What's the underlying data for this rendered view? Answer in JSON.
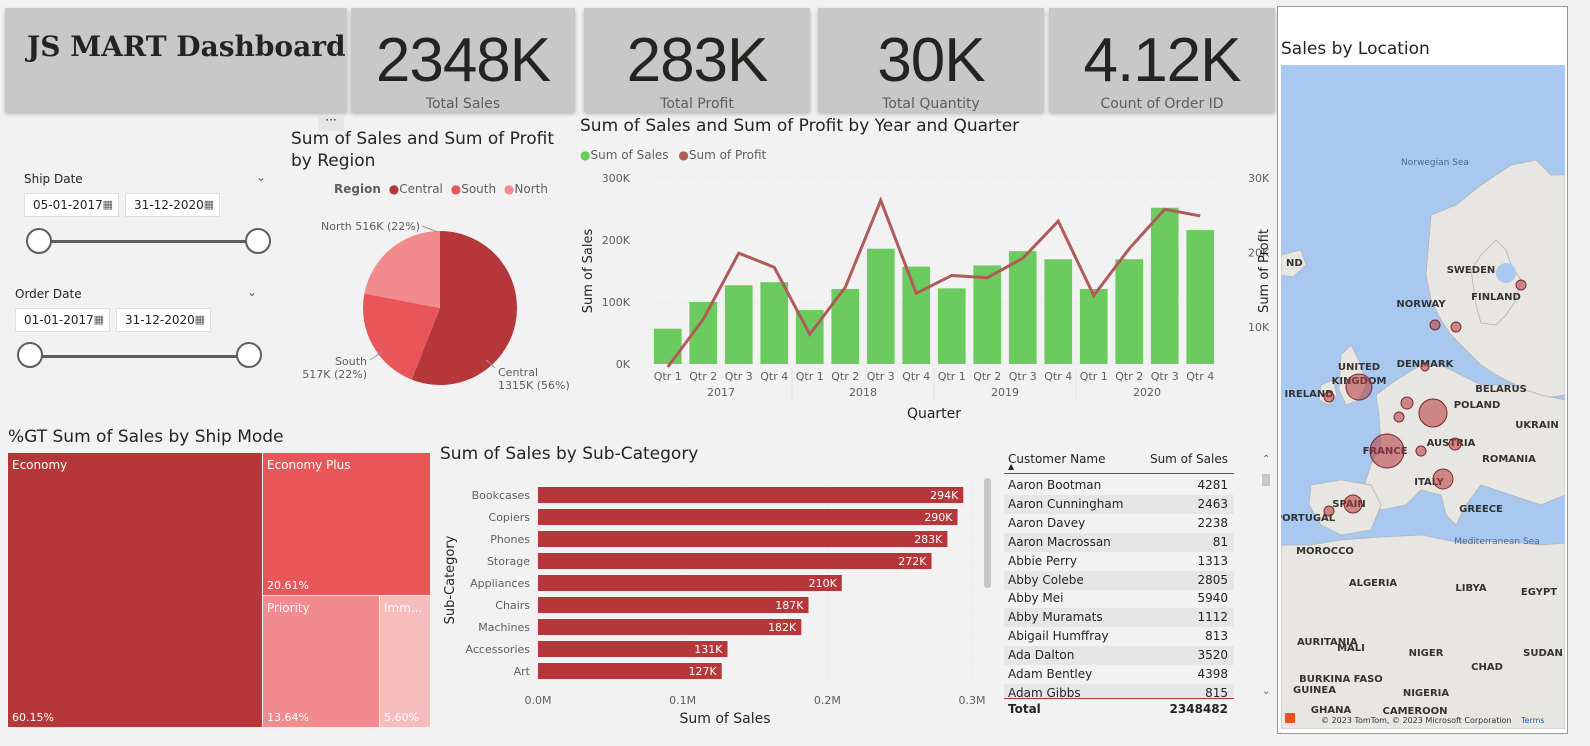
{
  "header": {
    "title": "JS MART Dashboard"
  },
  "kpis": [
    {
      "value": "2348K",
      "label": "Total Sales"
    },
    {
      "value": "283K",
      "label": "Total Profit"
    },
    {
      "value": "30K",
      "label": "Total  Quantity"
    },
    {
      "value": "4.12K",
      "label": "Count of Order ID"
    }
  ],
  "filters": {
    "ship_date": {
      "label": "Ship Date",
      "start": "05-01-2017",
      "end": "31-12-2020"
    },
    "order_date": {
      "label": "Order Date",
      "start": "01-01-2017",
      "end": "31-12-2020"
    }
  },
  "region_pie": {
    "title": "Sum of Sales and Sum of Profit by Region",
    "legend_title": "Region",
    "slices": [
      {
        "name": "Central",
        "value": 1315,
        "label": "Central 1315K (56%)",
        "color": "#b5373a"
      },
      {
        "name": "South",
        "value": 517,
        "label": "South 517K (22%)",
        "color": "#e9565a"
      },
      {
        "name": "North",
        "value": 516,
        "label": "North 516K (22%)",
        "color": "#f28b8d"
      }
    ]
  },
  "chart_data": {
    "type": "bar",
    "title": "Sum of Sales and Sum of Profit by Year and Quarter",
    "xlabel": "Quarter",
    "ylabel": "Sum of Sales",
    "y2label": "Sum of Profit",
    "categories": [
      "Qtr 1",
      "Qtr 2",
      "Qtr 3",
      "Qtr 4",
      "Qtr 1",
      "Qtr 2",
      "Qtr 3",
      "Qtr 4",
      "Qtr 1",
      "Qtr 2",
      "Qtr 3",
      "Qtr 4",
      "Qtr 1",
      "Qtr 2",
      "Qtr 3",
      "Qtr 4"
    ],
    "years": [
      "2017",
      "2018",
      "2019",
      "2020"
    ],
    "ylim": [
      0,
      300000
    ],
    "y2lim": [
      5000,
      30000
    ],
    "y_ticks": [
      "0K",
      "100K",
      "200K",
      "300K"
    ],
    "y2_ticks": [
      "10K",
      "20K",
      "30K"
    ],
    "series": [
      {
        "name": "Sum of Sales",
        "type": "bar",
        "color": "#6ccb5f",
        "values": [
          57000,
          100000,
          127000,
          132000,
          87000,
          121000,
          186000,
          157000,
          122000,
          159000,
          182000,
          169000,
          121000,
          169000,
          252000,
          216000
        ]
      },
      {
        "name": "Sum of Profit",
        "type": "line",
        "color": "#b05a5a",
        "values": [
          4600,
          11000,
          19900,
          18000,
          9000,
          15300,
          27000,
          14500,
          16900,
          16600,
          19200,
          24200,
          14200,
          20500,
          25800,
          24900
        ]
      }
    ]
  },
  "ship_mode": {
    "title": "%GT Sum of Sales by Ship Mode",
    "cells": [
      {
        "name": "Economy",
        "pct": "60.15%"
      },
      {
        "name": "Economy Plus",
        "pct": "20.61%"
      },
      {
        "name": "Priority",
        "pct": "13.64%"
      },
      {
        "name": "Imm...",
        "pct": "5.60%"
      }
    ]
  },
  "subcategory": {
    "title": "Sum of Sales by Sub-Category",
    "xlabel": "Sum of Sales",
    "ylabel": "Sub-Category",
    "x_ticks": [
      "0.0M",
      "0.1M",
      "0.2M",
      "0.3M"
    ],
    "xlim": [
      0,
      300
    ],
    "bars": [
      {
        "name": "Bookcases",
        "value": 294,
        "label": "294K"
      },
      {
        "name": "Copiers",
        "value": 290,
        "label": "290K"
      },
      {
        "name": "Phones",
        "value": 283,
        "label": "283K"
      },
      {
        "name": "Storage",
        "value": 272,
        "label": "272K"
      },
      {
        "name": "Appliances",
        "value": 210,
        "label": "210K"
      },
      {
        "name": "Chairs",
        "value": 187,
        "label": "187K"
      },
      {
        "name": "Machines",
        "value": 182,
        "label": "182K"
      },
      {
        "name": "Accessories",
        "value": 131,
        "label": "131K"
      },
      {
        "name": "Art",
        "value": 127,
        "label": "127K"
      }
    ]
  },
  "table": {
    "col_name": "Customer Name",
    "col_sales": "Sum of Sales",
    "rows": [
      {
        "name": "Aaron Bootman",
        "sales": "4281"
      },
      {
        "name": "Aaron Cunningham",
        "sales": "2463"
      },
      {
        "name": "Aaron Davey",
        "sales": "2238"
      },
      {
        "name": "Aaron Macrossan",
        "sales": "81"
      },
      {
        "name": "Abbie Perry",
        "sales": "1313"
      },
      {
        "name": "Abby Colebe",
        "sales": "2805"
      },
      {
        "name": "Abby Mei",
        "sales": "5940"
      },
      {
        "name": "Abby Muramats",
        "sales": "1112"
      },
      {
        "name": "Abigail Humffray",
        "sales": "813"
      },
      {
        "name": "Ada Dalton",
        "sales": "3520"
      },
      {
        "name": "Adam Bentley",
        "sales": "4398"
      },
      {
        "name": "Adam Gibbs",
        "sales": "815"
      }
    ],
    "total_label": "Total",
    "total_value": "2348482"
  },
  "map": {
    "title": "Sales by Location",
    "labels": [
      "Norwegian Sea",
      "SWEDEN",
      "NORWAY",
      "FINLAND",
      "DENMARK",
      "UNITED KINGDOM",
      "IRELAND",
      "BELARUS",
      "POLAND",
      "UKRAIN",
      "FRANCE",
      "AUSTRIA",
      "ROMANIA",
      "ITALY",
      "PORTUGAL",
      "SPAIN",
      "GREECE",
      "MOROCCO",
      "ALGERIA",
      "LIBYA",
      "EGYPT",
      "Mediterranean Sea",
      "MALI",
      "NIGER",
      "CHAD",
      "SUDAN",
      "BURKINA FASO",
      "NIGERIA",
      "GUINEA",
      "GHANA",
      "CAMEROON",
      "AURITANIA",
      "ND"
    ],
    "copyright": "© 2023 TomTom, © 2023 Microsoft Corporation",
    "terms": "Terms"
  }
}
